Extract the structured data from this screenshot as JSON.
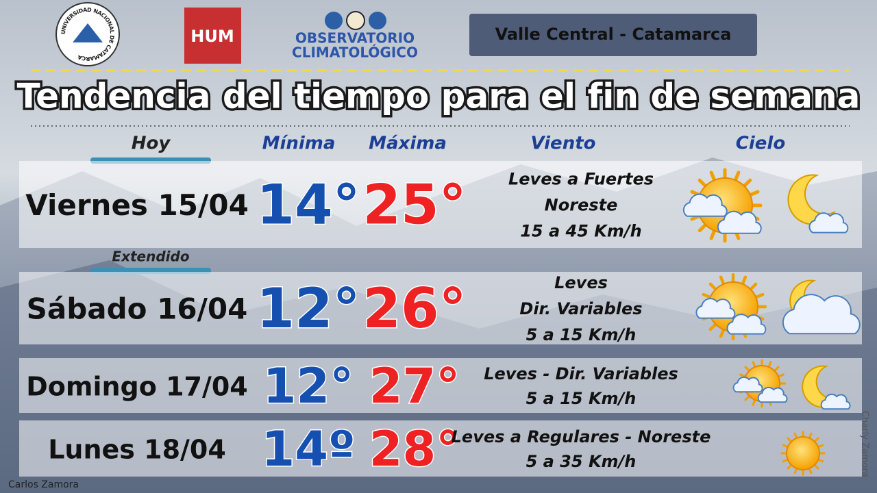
{
  "header": {
    "university_logo": "UNIVERSIDAD NACIONAL DE CATAMARCA",
    "hum_logo": "HUM",
    "observatory": [
      "OBSERVATORIO",
      "CLIMATOLÓGICO"
    ],
    "region": "Valle Central - Catamarca"
  },
  "title": "Tendencia del tiempo para el fin de semana",
  "columns": {
    "today": "Hoy",
    "min": "Mínima",
    "max": "Máxima",
    "wind": "Viento",
    "sky": "Cielo"
  },
  "extended_label": "Extendido",
  "rows": [
    {
      "day": "Viernes 15/04",
      "min": "14°",
      "max": "25°",
      "wind": [
        "Leves a Fuertes",
        "Noreste",
        "15 a 45 Km/h"
      ]
    },
    {
      "day": "Sábado 16/04",
      "min": "12°",
      "max": "26°",
      "wind": [
        "Leves",
        "Dir. Variables",
        "5 a 15 Km/h"
      ]
    },
    {
      "day": "Domingo 17/04",
      "min": "12°",
      "max": "27°",
      "wind": [
        "Leves - Dir. Variables",
        "5 a 15 Km/h"
      ]
    },
    {
      "day": "Lunes 18/04",
      "min": "14º",
      "max": "28°",
      "wind": [
        "Leves a Regulares - Noreste",
        "5 a 35 Km/h"
      ]
    }
  ],
  "credits": {
    "author": "Carlos Zamora",
    "watermark": "Charly Zamora"
  }
}
